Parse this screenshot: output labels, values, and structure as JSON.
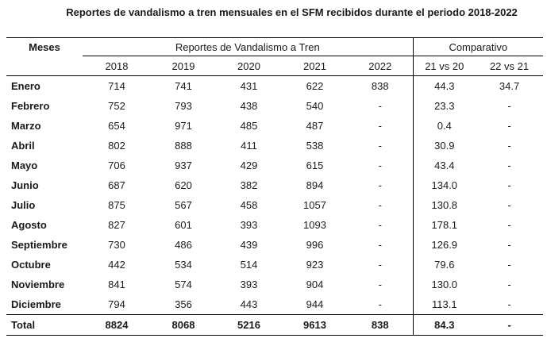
{
  "title": "Reportes de vandalismo a tren mensuales en el SFM recibidos durante el periodo 2018-2022",
  "header": {
    "meses": "Meses",
    "group_reports": "Reportes de Vandalismo a Tren",
    "group_comparison": "Comparativo",
    "years": [
      "2018",
      "2019",
      "2020",
      "2021",
      "2022"
    ],
    "comparisons": [
      "21 vs 20",
      "22 vs 21"
    ]
  },
  "rows": [
    {
      "month": "Enero",
      "v": [
        "714",
        "741",
        "431",
        "622",
        "838",
        "44.3",
        "34.7"
      ]
    },
    {
      "month": "Febrero",
      "v": [
        "752",
        "793",
        "438",
        "540",
        "-",
        "23.3",
        "-"
      ]
    },
    {
      "month": "Marzo",
      "v": [
        "654",
        "971",
        "485",
        "487",
        "-",
        "0.4",
        "-"
      ]
    },
    {
      "month": "Abril",
      "v": [
        "802",
        "888",
        "411",
        "538",
        "-",
        "30.9",
        "-"
      ]
    },
    {
      "month": "Mayo",
      "v": [
        "706",
        "937",
        "429",
        "615",
        "-",
        "43.4",
        "-"
      ]
    },
    {
      "month": "Junio",
      "v": [
        "687",
        "620",
        "382",
        "894",
        "-",
        "134.0",
        "-"
      ]
    },
    {
      "month": "Julio",
      "v": [
        "875",
        "567",
        "458",
        "1057",
        "-",
        "130.8",
        "-"
      ]
    },
    {
      "month": "Agosto",
      "v": [
        "827",
        "601",
        "393",
        "1093",
        "-",
        "178.1",
        "-"
      ]
    },
    {
      "month": "Septiembre",
      "v": [
        "730",
        "486",
        "439",
        "996",
        "-",
        "126.9",
        "-"
      ]
    },
    {
      "month": "Octubre",
      "v": [
        "442",
        "534",
        "514",
        "923",
        "-",
        "79.6",
        "-"
      ]
    },
    {
      "month": "Noviembre",
      "v": [
        "841",
        "574",
        "393",
        "904",
        "-",
        "130.0",
        "-"
      ]
    },
    {
      "month": "Diciembre",
      "v": [
        "794",
        "356",
        "443",
        "944",
        "-",
        "113.1",
        "-"
      ]
    }
  ],
  "total": {
    "label": "Total",
    "v": [
      "8824",
      "8068",
      "5216",
      "9613",
      "838",
      "84.3",
      "-"
    ]
  }
}
